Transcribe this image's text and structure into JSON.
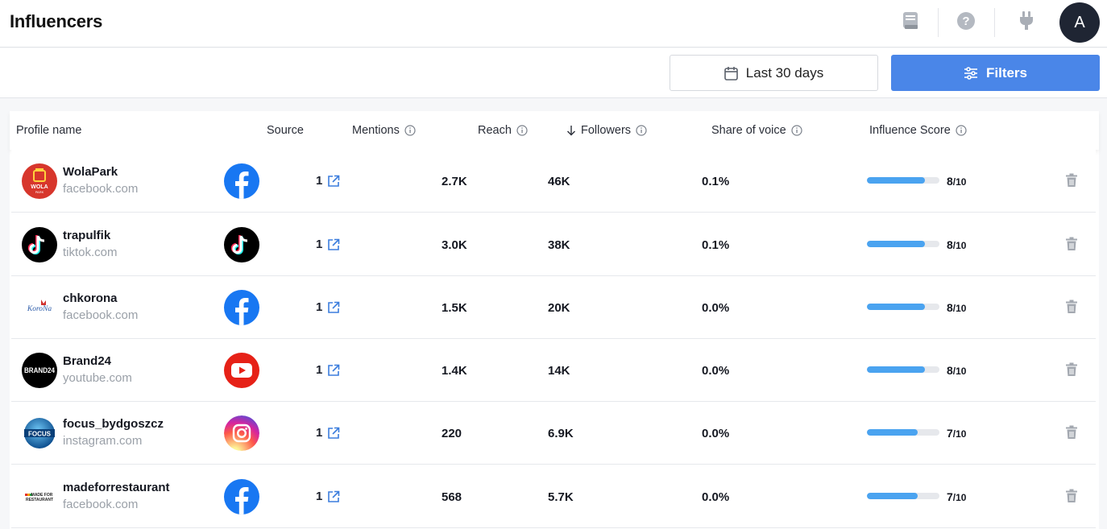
{
  "header": {
    "title": "Influencers",
    "avatar_initial": "A"
  },
  "toolbar": {
    "date_range_label": "Last 30 days",
    "filters_label": "Filters"
  },
  "table": {
    "columns": {
      "profile": "Profile name",
      "source": "Source",
      "mentions": "Mentions",
      "reach": "Reach",
      "followers": "Followers",
      "share_of_voice": "Share of voice",
      "influence_score": "Influence Score"
    },
    "rows": [
      {
        "name": "WolaPark",
        "domain": "facebook.com",
        "source": "facebook",
        "mentions": "1",
        "reach": "2.7K",
        "followers": "46K",
        "share": "0.1%",
        "score": "8",
        "score_max": "/10",
        "score_value": 0.8
      },
      {
        "name": "trapulfik",
        "domain": "tiktok.com",
        "source": "tiktok",
        "mentions": "1",
        "reach": "3.0K",
        "followers": "38K",
        "share": "0.1%",
        "score": "8",
        "score_max": "/10",
        "score_value": 0.8
      },
      {
        "name": "chkorona",
        "domain": "facebook.com",
        "source": "facebook",
        "mentions": "1",
        "reach": "1.5K",
        "followers": "20K",
        "share": "0.0%",
        "score": "8",
        "score_max": "/10",
        "score_value": 0.8
      },
      {
        "name": "Brand24",
        "domain": "youtube.com",
        "source": "youtube",
        "mentions": "1",
        "reach": "1.4K",
        "followers": "14K",
        "share": "0.0%",
        "score": "8",
        "score_max": "/10",
        "score_value": 0.8
      },
      {
        "name": "focus_bydgoszcz",
        "domain": "instagram.com",
        "source": "instagram",
        "mentions": "1",
        "reach": "220",
        "followers": "6.9K",
        "share": "0.0%",
        "score": "7",
        "score_max": "/10",
        "score_value": 0.7
      },
      {
        "name": "madeforrestaurant",
        "domain": "facebook.com",
        "source": "facebook",
        "mentions": "1",
        "reach": "568",
        "followers": "5.7K",
        "share": "0.0%",
        "score": "7",
        "score_max": "/10",
        "score_value": 0.7
      }
    ]
  },
  "avatars": {
    "wolapark": "WOLA",
    "wolapark_sub": "PARK",
    "chkorona": "KoroNa",
    "brand24": "BRAND24",
    "focus": "FOCUS",
    "made_top": "MADE FOR",
    "made_bottom": "RESTAURANT"
  },
  "colors": {
    "accent": "#4a86e8",
    "score_bar": "#4aa3f0",
    "facebook": "#1877f2",
    "youtube": "#e62117"
  }
}
